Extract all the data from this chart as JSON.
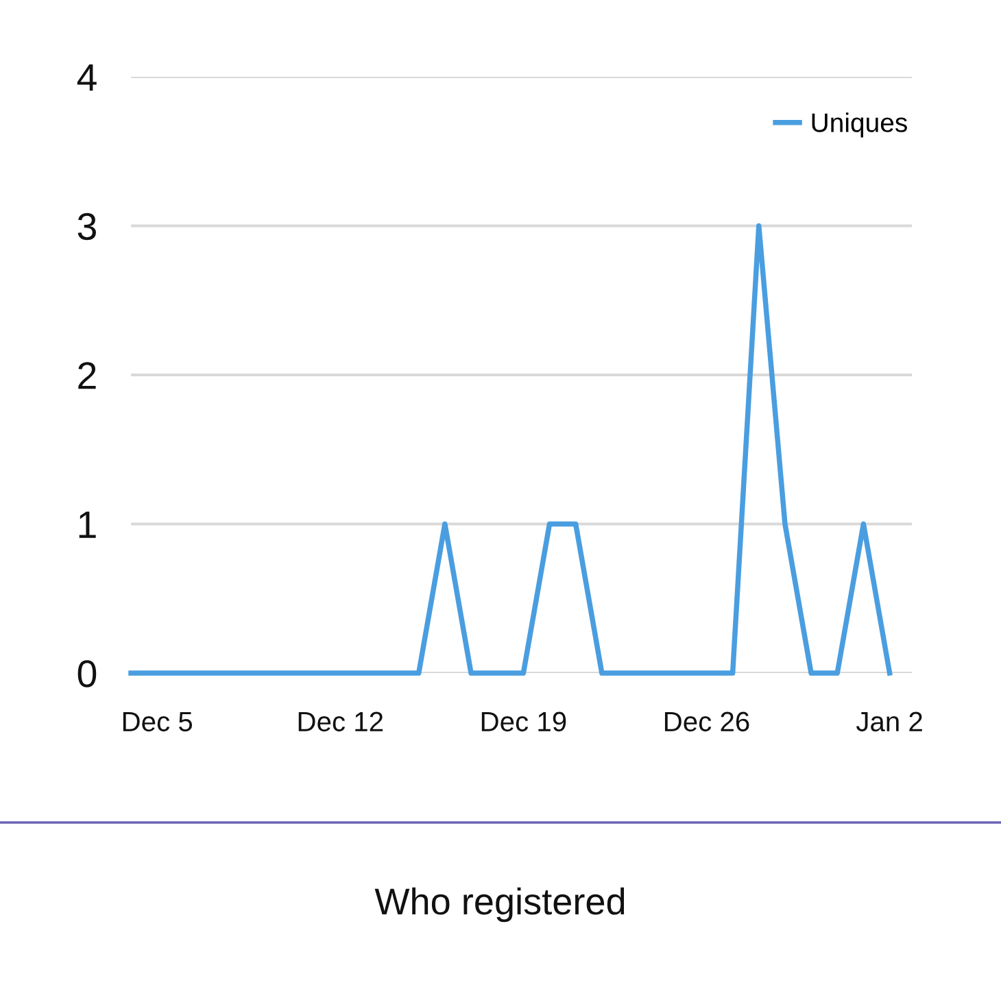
{
  "chart_data": {
    "type": "line",
    "title": "Who registered",
    "categories": [
      null,
      "Dec 5",
      null,
      null,
      null,
      null,
      null,
      null,
      "Dec 12",
      null,
      null,
      null,
      null,
      null,
      null,
      "Dec 19",
      null,
      null,
      null,
      null,
      null,
      null,
      "Dec 26",
      null,
      null,
      null,
      null,
      null,
      null,
      "Jan 2"
    ],
    "series": [
      {
        "name": "Uniques",
        "color": "#4a9ee0",
        "values": [
          0,
          0,
          0,
          0,
          0,
          0,
          0,
          0,
          0,
          0,
          0,
          0,
          1,
          0,
          0,
          0,
          1,
          1,
          0,
          0,
          0,
          0,
          0,
          0,
          3,
          1,
          0,
          0,
          1,
          0
        ]
      }
    ],
    "ylim": [
      0,
      4
    ],
    "yticks": [
      0,
      1,
      2,
      3,
      4
    ],
    "grid": "y",
    "legend": "top right",
    "line_style": "solid"
  }
}
